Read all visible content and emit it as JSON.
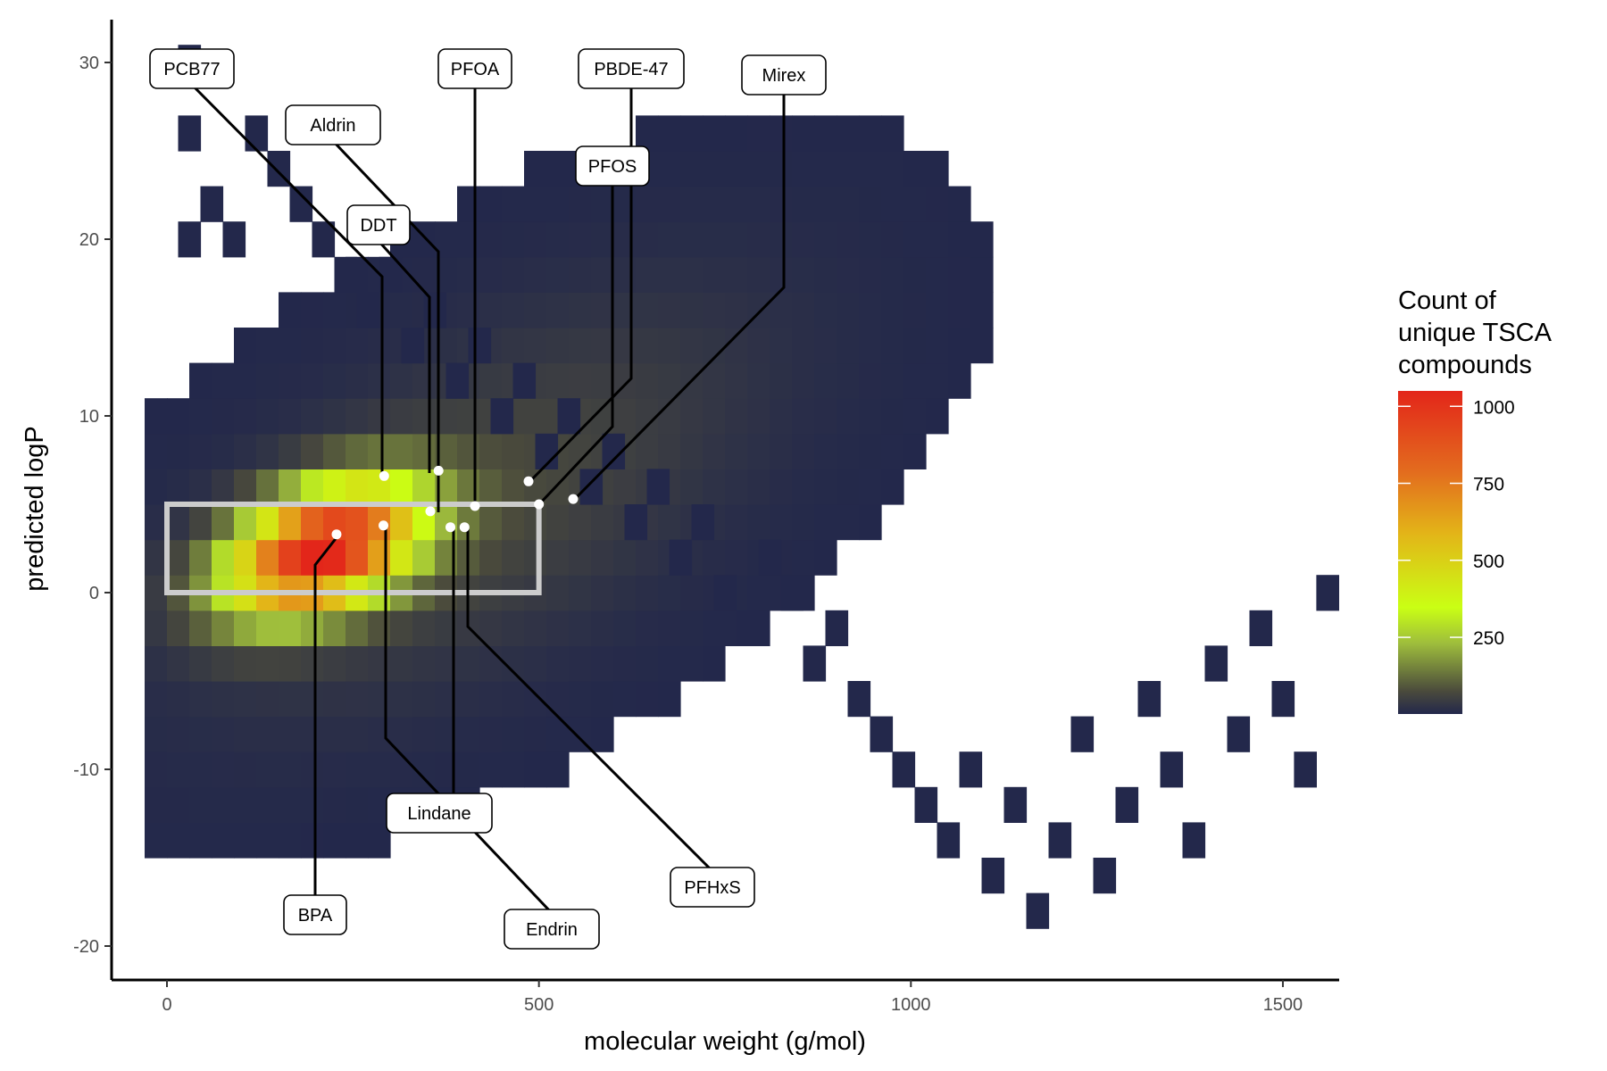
{
  "chart_data": {
    "type": "heatmap",
    "title": "",
    "xlabel": "molecular weight (g/mol)",
    "ylabel": "predicted logP",
    "xlim": [
      -75,
      1575
    ],
    "ylim": [
      -22,
      32.5
    ],
    "x_ticks": [
      0,
      500,
      1000,
      1500
    ],
    "y_ticks": [
      -20,
      -10,
      0,
      10,
      20,
      30
    ],
    "x_tick_labels": [
      "0",
      "500",
      "1000",
      "1500"
    ],
    "y_tick_labels": [
      "-20",
      "-10",
      "0",
      "10",
      "20",
      "30"
    ],
    "bin_width_x": 30,
    "bin_width_y": 2,
    "grid": false,
    "legend": {
      "title": [
        "Count of",
        "unique TSCA",
        "compounds"
      ],
      "position": "right",
      "min": 1,
      "max": 1050,
      "ticks": [
        250,
        500,
        750,
        1000
      ],
      "tick_labels": [
        "250",
        "500",
        "750",
        "1000"
      ],
      "colors": [
        "#23284b",
        "#4a4a3c",
        "#9fbe3c",
        "#caff14",
        "#e3b418",
        "#e36c1e",
        "#e3261a"
      ]
    },
    "bins": [
      [
        30,
        30,
        1
      ],
      [
        30,
        26,
        1
      ],
      [
        30,
        20,
        1
      ],
      [
        60,
        22,
        1
      ],
      [
        90,
        20,
        1
      ],
      [
        120,
        26,
        1
      ],
      [
        150,
        24,
        1
      ],
      [
        180,
        22,
        1
      ],
      [
        210,
        20,
        1
      ],
      [
        240,
        18,
        1
      ],
      [
        270,
        16,
        1
      ],
      [
        300,
        18,
        1
      ],
      [
        330,
        14,
        1
      ],
      [
        360,
        16,
        1
      ],
      [
        390,
        12,
        1
      ],
      [
        420,
        14,
        1
      ],
      [
        450,
        10,
        1
      ],
      [
        480,
        12,
        1
      ],
      [
        510,
        8,
        1
      ],
      [
        540,
        10,
        1
      ],
      [
        570,
        6,
        1
      ],
      [
        600,
        8,
        1
      ],
      [
        630,
        4,
        1
      ],
      [
        660,
        6,
        1
      ],
      [
        690,
        2,
        1
      ],
      [
        720,
        4,
        1
      ],
      [
        750,
        0,
        1
      ],
      [
        780,
        -2,
        1
      ],
      [
        810,
        2,
        1
      ],
      [
        840,
        0,
        1
      ],
      [
        870,
        -4,
        1
      ],
      [
        900,
        -2,
        1
      ],
      [
        930,
        -6,
        1
      ],
      [
        960,
        -8,
        1
      ],
      [
        990,
        -10,
        1
      ],
      [
        1020,
        -12,
        1
      ],
      [
        1050,
        -14,
        1
      ],
      [
        1080,
        -10,
        1
      ],
      [
        1110,
        -16,
        1
      ],
      [
        1140,
        -12,
        1
      ],
      [
        1170,
        -18,
        1
      ],
      [
        1200,
        -14,
        1
      ],
      [
        1230,
        -8,
        1
      ],
      [
        1260,
        -16,
        1
      ],
      [
        1290,
        -12,
        1
      ],
      [
        1320,
        -6,
        1
      ],
      [
        1350,
        -10,
        1
      ],
      [
        1380,
        -14,
        1
      ],
      [
        1410,
        -4,
        1
      ],
      [
        1440,
        -8,
        1
      ],
      [
        1470,
        -2,
        1
      ],
      [
        1500,
        -6,
        1
      ],
      [
        1530,
        -10,
        1
      ],
      [
        1560,
        0,
        1
      ]
    ],
    "bin_note_values": [],
    "selection_box": {
      "x": [
        0,
        500
      ],
      "y": [
        0,
        5
      ],
      "color": "#cccccc"
    },
    "labels": [
      {
        "text": "PCB77",
        "x": 292,
        "y": 6.6
      },
      {
        "text": "Aldrin",
        "x": 365,
        "y": 6.9
      },
      {
        "text": "PFOA",
        "x": 414,
        "y": 4.9
      },
      {
        "text": "PBDE-47",
        "x": 486,
        "y": 6.3
      },
      {
        "text": "Mirex",
        "x": 546,
        "y": 5.3
      },
      {
        "text": "PFOS",
        "x": 500,
        "y": 5.0
      },
      {
        "text": "DDT",
        "x": 354,
        "y": 4.6
      },
      {
        "text": "BPA",
        "x": 228,
        "y": 3.3
      },
      {
        "text": "Lindane",
        "x": 291,
        "y": 3.8
      },
      {
        "text": "Endrin",
        "x": 381,
        "y": 3.7
      },
      {
        "text": "PFHxS",
        "x": 400,
        "y": 3.7
      }
    ]
  }
}
